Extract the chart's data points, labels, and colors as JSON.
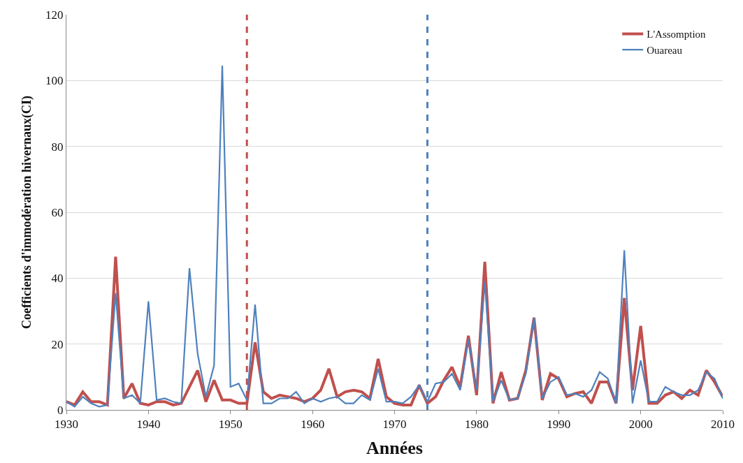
{
  "chart_data": {
    "type": "line",
    "xlabel": "Années",
    "ylabel": "Coefficients d'immodération hivernaux(CI)",
    "x": [
      1930,
      1931,
      1932,
      1933,
      1934,
      1935,
      1936,
      1937,
      1938,
      1939,
      1940,
      1941,
      1942,
      1943,
      1944,
      1945,
      1946,
      1947,
      1948,
      1949,
      1950,
      1951,
      1952,
      1953,
      1954,
      1955,
      1956,
      1957,
      1958,
      1959,
      1960,
      1961,
      1962,
      1963,
      1964,
      1965,
      1966,
      1967,
      1968,
      1969,
      1970,
      1971,
      1972,
      1973,
      1974,
      1975,
      1976,
      1977,
      1978,
      1979,
      1980,
      1981,
      1982,
      1983,
      1984,
      1985,
      1986,
      1987,
      1988,
      1989,
      1990,
      1991,
      1992,
      1993,
      1994,
      1995,
      1996,
      1997,
      1998,
      1999,
      2000,
      2001,
      2002,
      2003,
      2004,
      2005,
      2006,
      2007,
      2008,
      2009,
      2010
    ],
    "series": [
      {
        "name": "L'Assomption",
        "color": "#c0504d",
        "values": [
          2.5,
          1.5,
          5.5,
          2.5,
          2.5,
          1.5,
          46.5,
          3.5,
          8,
          2,
          1.5,
          2.5,
          2.5,
          1.5,
          2,
          7,
          12,
          2.5,
          9,
          3,
          3,
          2,
          2,
          20.5,
          5.5,
          3.5,
          4.5,
          4,
          3.5,
          2.5,
          3.5,
          6,
          12.5,
          4,
          5.5,
          6,
          5.5,
          3.5,
          15.5,
          4,
          2,
          1.5,
          1.5,
          7.5,
          2,
          4,
          9,
          13,
          7,
          22.5,
          4.5,
          45,
          2,
          11.5,
          3,
          3.5,
          12,
          28,
          3,
          11,
          9.5,
          4,
          5,
          5.5,
          2,
          8.5,
          8.5,
          2,
          34,
          6,
          25.5,
          2,
          2,
          4.5,
          5.5,
          3.5,
          6,
          4.5,
          12,
          8.5,
          4
        ]
      },
      {
        "name": "Ouareau",
        "color": "#4f81bd",
        "values": [
          2.5,
          1,
          4,
          2,
          1,
          1.5,
          35.5,
          3.5,
          4.5,
          2,
          33,
          3,
          3.5,
          2.5,
          2,
          43,
          17,
          4,
          13.5,
          104.5,
          7,
          8,
          3,
          32,
          2,
          2,
          3.5,
          3.5,
          5.5,
          2,
          3.5,
          2.5,
          3.5,
          4,
          2,
          2,
          4.5,
          3,
          12.5,
          2.5,
          2.5,
          2,
          4,
          7.5,
          2.5,
          8,
          8.5,
          11,
          6,
          21.5,
          6,
          39,
          2.5,
          9,
          3,
          3.5,
          11,
          28,
          3.5,
          8.5,
          10,
          4.5,
          5,
          4,
          6,
          11.5,
          9.5,
          2,
          48.5,
          2,
          15,
          2.5,
          2.5,
          7,
          5.5,
          4.5,
          4.5,
          6,
          11.5,
          9.5,
          3.5
        ]
      }
    ],
    "xlim": [
      1930,
      2010
    ],
    "xticks": [
      1930,
      1940,
      1950,
      1960,
      1970,
      1980,
      1990,
      2000,
      2010
    ],
    "ylim": [
      0,
      120
    ],
    "yticks": [
      0,
      20,
      40,
      60,
      80,
      100,
      120
    ],
    "grid": "y",
    "legend": "top right",
    "marker": "none",
    "line_style": "solid",
    "ref_lines": [
      {
        "axis": "x",
        "value": 1952,
        "color": "#c0504d",
        "line_style": "dashed"
      },
      {
        "axis": "x",
        "value": 1974,
        "color": "#4f81bd",
        "line_style": "dashed"
      }
    ]
  }
}
